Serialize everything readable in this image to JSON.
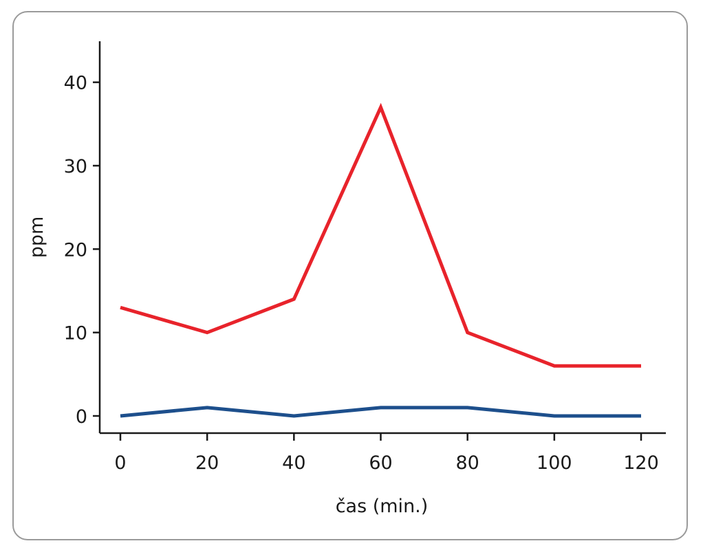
{
  "chart_data": {
    "type": "line",
    "title": "",
    "xlabel": "čas (min.)",
    "ylabel": "ppm",
    "xlim": [
      0,
      120
    ],
    "ylim": [
      0,
      45
    ],
    "x_ticks": [
      0,
      20,
      40,
      60,
      80,
      100,
      120
    ],
    "y_ticks": [
      0,
      10,
      20,
      30,
      40
    ],
    "grid": false,
    "x": [
      0,
      20,
      40,
      60,
      80,
      100,
      120
    ],
    "series": [
      {
        "color": "#e8232b",
        "values": [
          13,
          10,
          14,
          37,
          10,
          6,
          6
        ]
      },
      {
        "color": "#1d4f8c",
        "values": [
          0,
          1,
          0,
          1,
          1,
          0,
          0
        ]
      }
    ]
  }
}
